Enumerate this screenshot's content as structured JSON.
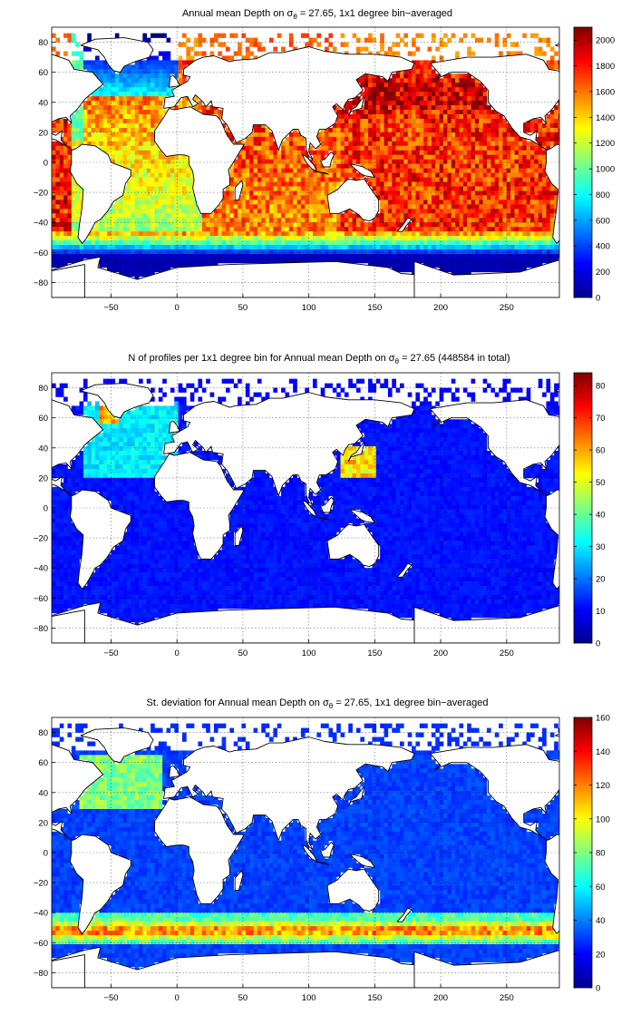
{
  "figure": {
    "x_ticks": [
      -50,
      0,
      50,
      100,
      150,
      200,
      250
    ],
    "y_ticks": [
      80,
      60,
      40,
      20,
      0,
      -20,
      -40,
      -60,
      -80
    ],
    "x_range": [
      -95,
      290
    ],
    "y_range": [
      -90,
      90
    ],
    "grid": true,
    "colormap": "jet"
  },
  "panels": [
    {
      "title_pre": "Annual mean Depth on ",
      "title_sigma": "σ",
      "title_sub": "θ",
      "title_post": " = 27.65, 1x1 degree bin−averaged",
      "quantity": "annual-mean-depth",
      "colorbar_ticks": [
        2000,
        1800,
        1600,
        1400,
        1200,
        1000,
        800,
        600,
        400,
        200,
        0
      ],
      "colorbar_range": [
        0,
        2100
      ]
    },
    {
      "title_pre": "N of profiles per 1x1 degree bin for Annual mean Depth on ",
      "title_sigma": "σ",
      "title_sub": "θ",
      "title_post": " = 27.65 (448584 in total)",
      "quantity": "profile-count",
      "colorbar_ticks": [
        80,
        70,
        60,
        50,
        40,
        30,
        20,
        10,
        0
      ],
      "colorbar_range": [
        0,
        84
      ]
    },
    {
      "title_pre": "St. deviation for Annual mean Depth on ",
      "title_sigma": "σ",
      "title_sub": "θ",
      "title_post": " = 27.65, 1x1 degree bin−averaged",
      "quantity": "depth-std-deviation",
      "colorbar_ticks": [
        160,
        140,
        120,
        100,
        80,
        60,
        40,
        20,
        0
      ],
      "colorbar_range": [
        0,
        160
      ]
    }
  ]
}
